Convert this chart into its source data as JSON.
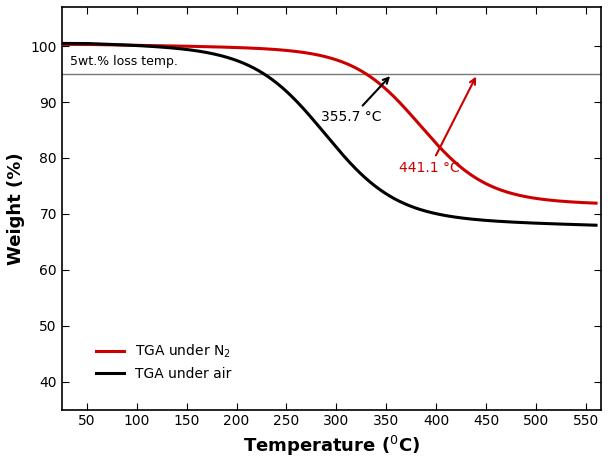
{
  "title": "",
  "xlabel": "Temperature",
  "ylabel": "Weight (%)",
  "xlim": [
    25,
    565
  ],
  "ylim": [
    35,
    107
  ],
  "xticks": [
    50,
    100,
    150,
    200,
    250,
    300,
    350,
    400,
    450,
    500,
    550
  ],
  "yticks": [
    40,
    50,
    60,
    70,
    80,
    90,
    100
  ],
  "ref_line_y": 95,
  "ref_line_label": "5wt.% loss temp.",
  "air_label": "TGA under air",
  "n2_label": "TGA under N₂",
  "air_color": "#000000",
  "n2_color": "#cc0000",
  "ref_color": "#777777",
  "ann_air_text": "355.7 °C",
  "ann_n2_text": "441.1 °C",
  "lw": 2.2
}
